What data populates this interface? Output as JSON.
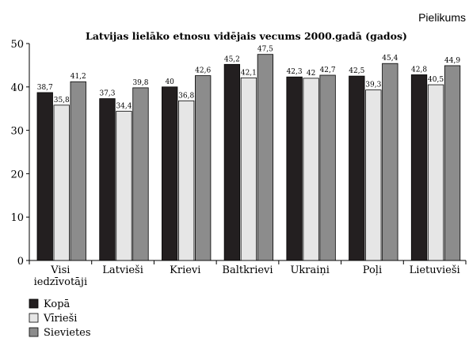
{
  "corner_label": "Pielikums",
  "colors": {
    "series_fill": [
      "#231f20",
      "#e6e6e6",
      "#8c8c8c"
    ],
    "stroke": "#000000"
  },
  "chart_data": {
    "type": "bar",
    "title": "Latvijas lielāko etnosu vidējais vecums 2000.gadā (gados)",
    "xlabel": "",
    "ylabel": "",
    "ylim": [
      0,
      50
    ],
    "yticks": [
      0,
      10,
      20,
      30,
      40,
      50
    ],
    "grid": false,
    "legend_position": "bottom-left",
    "categories": [
      [
        "Visi",
        "iedzīvotāji"
      ],
      [
        "Latvieši"
      ],
      [
        "Krievi"
      ],
      [
        "Baltkrievi"
      ],
      [
        "Ukraiņi"
      ],
      [
        "Poļi"
      ],
      [
        "Lietuvieši"
      ]
    ],
    "series": [
      {
        "name": "Kopā",
        "values": [
          38.7,
          37.3,
          40,
          45.2,
          42.3,
          42.5,
          42.8
        ],
        "labels": [
          "38,7",
          "37,3",
          "40",
          "45,2",
          "42,3",
          "42,5",
          "42,8"
        ]
      },
      {
        "name": "Vīrieši",
        "values": [
          35.8,
          34.4,
          36.8,
          42.1,
          42,
          39.3,
          40.5
        ],
        "labels": [
          "35,8",
          "34,4",
          "36,8",
          "42,1",
          "42",
          "39,3",
          "40,5"
        ]
      },
      {
        "name": "Sievietes",
        "values": [
          41.2,
          39.8,
          42.6,
          47.5,
          42.7,
          45.4,
          44.9
        ],
        "labels": [
          "41,2",
          "39,8",
          "42,6",
          "47,5",
          "42,7",
          "45,4",
          "44,9"
        ]
      }
    ]
  }
}
